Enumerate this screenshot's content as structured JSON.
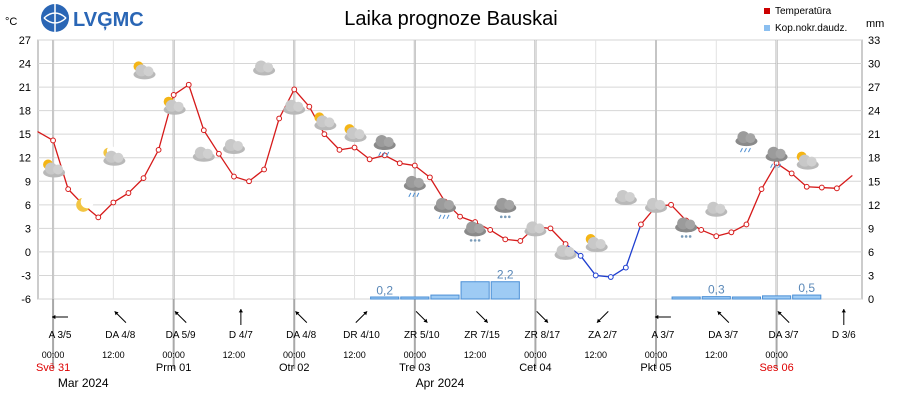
{
  "logo": {
    "text": "LVĢMC"
  },
  "chart_data": {
    "type": "line",
    "title": "Laika prognoze Bauskai",
    "left_unit": "°C",
    "right_unit": "mm",
    "legend": [
      {
        "label": "Temperatūra",
        "color": "#cc0000"
      },
      {
        "label": "Kop.nokr.daudz.",
        "color": "#8bbff0"
      }
    ],
    "left_ticks": [
      "27",
      "24",
      "21",
      "18",
      "15",
      "12",
      "9",
      "6",
      "3",
      "0",
      "-3",
      "-6"
    ],
    "right_ticks": [
      "33",
      "30",
      "27",
      "24",
      "21",
      "18",
      "15",
      "12",
      "9",
      "6",
      "3",
      "0"
    ],
    "ylim": [
      -6,
      27
    ],
    "y2lim": [
      0,
      33
    ],
    "grid": true,
    "temperature": {
      "x": [
        0,
        3,
        6,
        9,
        12,
        15,
        18,
        21,
        24,
        27,
        30,
        33,
        36,
        39,
        42,
        45,
        48,
        51,
        54,
        57,
        60,
        63,
        66,
        69,
        72,
        75,
        78,
        81,
        84,
        87,
        90,
        93,
        96,
        99,
        102,
        105,
        108,
        111,
        114,
        117,
        120,
        123,
        126,
        129,
        132,
        135,
        138,
        141,
        144,
        147,
        150,
        153,
        156,
        159,
        162
      ],
      "values": [
        15.3,
        14.2,
        8.0,
        6.0,
        4.4,
        6.3,
        7.5,
        9.4,
        13.0,
        20.0,
        21.3,
        15.5,
        12.5,
        9.6,
        9.0,
        10.5,
        17.0,
        20.7,
        18.5,
        15.0,
        13.0,
        13.3,
        11.8,
        12.3,
        11.3,
        11.0,
        9.5,
        6.4,
        4.5,
        3.8,
        2.8,
        1.6,
        1.4,
        3.2,
        3.0,
        1.0,
        -0.5,
        -3.0,
        -3.2,
        -2.0,
        3.5,
        5.8,
        6.0,
        4.0,
        2.8,
        2.0,
        2.5,
        3.5,
        8.0,
        11.3,
        10.0,
        8.3,
        8.2,
        8.1,
        9.7
      ],
      "marker_x": [
        3,
        6,
        9,
        12,
        15,
        18,
        21,
        24,
        27,
        30,
        33,
        36,
        39,
        42,
        45,
        48,
        51,
        54,
        57,
        60,
        63,
        66,
        69,
        72,
        75,
        78,
        81,
        84,
        87,
        90,
        93,
        96,
        99,
        102,
        105,
        108,
        111,
        114,
        117,
        120,
        123,
        126,
        129,
        132,
        135,
        138,
        141,
        144,
        147,
        150,
        153,
        156,
        159
      ]
    },
    "precipitation": {
      "bars": [
        {
          "x_start": 66,
          "x_end": 72,
          "value": 0.2
        },
        {
          "x_start": 72,
          "x_end": 78,
          "value": 0.2
        },
        {
          "x_start": 78,
          "x_end": 84,
          "value": 0.5
        },
        {
          "x_start": 84,
          "x_end": 90,
          "value": 2.2
        },
        {
          "x_start": 90,
          "x_end": 96,
          "value": 2.2
        },
        {
          "x_start": 126,
          "x_end": 132,
          "value": 0.15
        },
        {
          "x_start": 132,
          "x_end": 138,
          "value": 0.3
        },
        {
          "x_start": 138,
          "x_end": 144,
          "value": 0.15
        },
        {
          "x_start": 144,
          "x_end": 150,
          "value": 0.4
        },
        {
          "x_start": 150,
          "x_end": 156,
          "value": 0.5
        }
      ],
      "labels": [
        {
          "x": 69,
          "text": "0,2"
        },
        {
          "x": 93,
          "text": "2,2"
        },
        {
          "x": 135,
          "text": "0,3"
        },
        {
          "x": 153,
          "text": "0,5"
        }
      ]
    },
    "weather_icons": [
      {
        "x": 3,
        "t": 10.5,
        "icon": "partly-cloudy-day-icon"
      },
      {
        "x": 9,
        "t": 6.0,
        "icon": "moon-icon"
      },
      {
        "x": 15,
        "t": 12.0,
        "icon": "partly-cloudy-night-icon"
      },
      {
        "x": 21,
        "t": 23.0,
        "icon": "partly-cloudy-day-icon"
      },
      {
        "x": 27,
        "t": 18.5,
        "icon": "partly-cloudy-day-icon"
      },
      {
        "x": 33,
        "t": 12.5,
        "icon": "cloudy-icon"
      },
      {
        "x": 39,
        "t": 13.5,
        "icon": "cloudy-icon"
      },
      {
        "x": 45,
        "t": 23.5,
        "icon": "cloudy-icon"
      },
      {
        "x": 51,
        "t": 18.5,
        "icon": "cloudy-icon"
      },
      {
        "x": 57,
        "t": 16.5,
        "icon": "partly-cloudy-day-icon"
      },
      {
        "x": 63,
        "t": 15.0,
        "icon": "partly-cloudy-day-icon"
      },
      {
        "x": 69,
        "t": 14.0,
        "icon": "rain-icon"
      },
      {
        "x": 75,
        "t": 8.8,
        "icon": "rain-icon"
      },
      {
        "x": 81,
        "t": 6.0,
        "icon": "rain-icon"
      },
      {
        "x": 87,
        "t": 3.0,
        "icon": "snow-icon"
      },
      {
        "x": 93,
        "t": 6.0,
        "icon": "snow-icon"
      },
      {
        "x": 99,
        "t": 3.0,
        "icon": "cloudy-icon"
      },
      {
        "x": 105,
        "t": 0.0,
        "icon": "cloudy-icon"
      },
      {
        "x": 111,
        "t": 1.0,
        "icon": "partly-cloudy-day-icon"
      },
      {
        "x": 117,
        "t": 7.0,
        "icon": "cloudy-icon"
      },
      {
        "x": 123,
        "t": 6.0,
        "icon": "cloudy-icon"
      },
      {
        "x": 129,
        "t": 3.5,
        "icon": "snow-icon"
      },
      {
        "x": 135,
        "t": 5.5,
        "icon": "cloudy-icon"
      },
      {
        "x": 141,
        "t": 14.5,
        "icon": "rain-icon"
      },
      {
        "x": 147,
        "t": 12.5,
        "icon": "rain-icon"
      },
      {
        "x": 153,
        "t": 11.5,
        "icon": "partly-cloudy-day-icon"
      }
    ],
    "wind": [
      {
        "x": 0,
        "text": "A 3/5",
        "dir": 270
      },
      {
        "x": 6,
        "text": "DA 4/8",
        "dir": 315
      },
      {
        "x": 12,
        "text": "DA 5/9",
        "dir": 315
      },
      {
        "x": 18,
        "text": "D 4/7",
        "dir": 0
      },
      {
        "x": 24,
        "text": "DA 4/8",
        "dir": 315
      },
      {
        "x": 30,
        "text": "DR 4/10",
        "dir": 45
      },
      {
        "x": 36,
        "text": "ZR 5/10",
        "dir": 135
      },
      {
        "x": 42,
        "text": "ZR 7/15",
        "dir": 135
      },
      {
        "x": 48,
        "text": "ZR 8/17",
        "dir": 135
      },
      {
        "x": 54,
        "text": "ZA 2/7",
        "dir": 225
      },
      {
        "x": 60,
        "text": "A 3/7",
        "dir": 270
      },
      {
        "x": 66,
        "text": "DA 3/7",
        "dir": 315
      },
      {
        "x": 72,
        "text": "DA 3/7",
        "dir": 315
      },
      {
        "x": 78,
        "text": "D 3/6",
        "dir": 0
      }
    ],
    "time_ticks": [
      {
        "x": 3,
        "text": "00:00"
      },
      {
        "x": 15,
        "text": "12:00"
      },
      {
        "x": 27,
        "text": "00:00"
      },
      {
        "x": 39,
        "text": "12:00"
      },
      {
        "x": 51,
        "text": "00:00"
      },
      {
        "x": 63,
        "text": "12:00"
      },
      {
        "x": 75,
        "text": "00:00"
      },
      {
        "x": 87,
        "text": "12:00"
      },
      {
        "x": 99,
        "text": "00:00"
      },
      {
        "x": 111,
        "text": "12:00"
      },
      {
        "x": 123,
        "text": "00:00"
      },
      {
        "x": 135,
        "text": "12:00"
      },
      {
        "x": 147,
        "text": "00:00"
      }
    ],
    "day_labels": [
      {
        "x": 3,
        "text": "Svē 31",
        "color": "#dd0000"
      },
      {
        "x": 27,
        "text": "Prm 01",
        "color": "#000000"
      },
      {
        "x": 51,
        "text": "Otr 02",
        "color": "#000000"
      },
      {
        "x": 75,
        "text": "Tre 03",
        "color": "#000000"
      },
      {
        "x": 99,
        "text": "Cet 04",
        "color": "#000000"
      },
      {
        "x": 123,
        "text": "Pkt 05",
        "color": "#000000"
      },
      {
        "x": 147,
        "text": "Ses 06",
        "color": "#dd0000"
      }
    ],
    "month_labels": [
      {
        "x": 8,
        "text": "Mar 2024"
      },
      {
        "x": 79,
        "text": "Apr 2024"
      }
    ]
  }
}
